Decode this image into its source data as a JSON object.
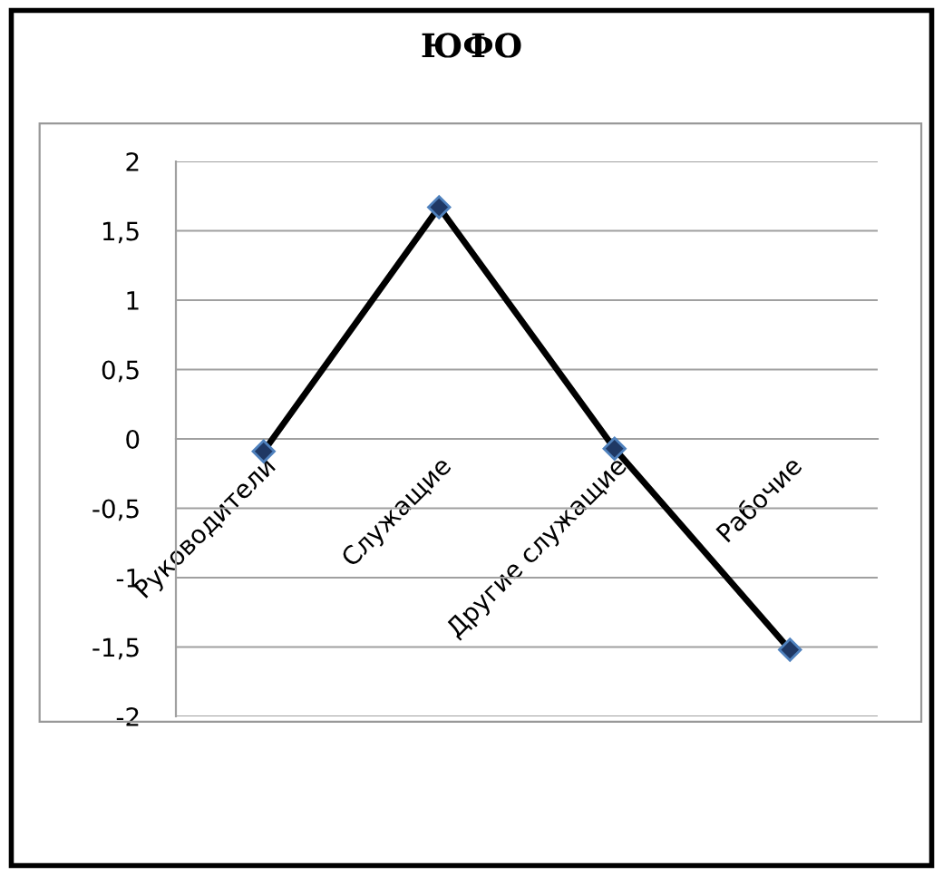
{
  "chart_data": {
    "type": "line",
    "title": "ЮФО",
    "categories": [
      "Руководители",
      "Служащие",
      "Другие служащие",
      "Рабочие"
    ],
    "values": [
      -0.09,
      1.67,
      -0.07,
      -1.52
    ],
    "color": "#000000",
    "marker": "diamond",
    "line_style": "solid",
    "ylim": [
      -2,
      2
    ],
    "yticks": [
      {
        "value": -2,
        "label": "-2"
      },
      {
        "value": -1.5,
        "label": "-1,5"
      },
      {
        "value": -1,
        "label": "-1"
      },
      {
        "value": -0.5,
        "label": "-0,5"
      },
      {
        "value": 0,
        "label": "0"
      },
      {
        "value": 0.5,
        "label": "0,5"
      },
      {
        "value": 1,
        "label": "1"
      },
      {
        "value": 1.5,
        "label": "1,5"
      },
      {
        "value": 2,
        "label": "2"
      }
    ],
    "grid": "y"
  }
}
